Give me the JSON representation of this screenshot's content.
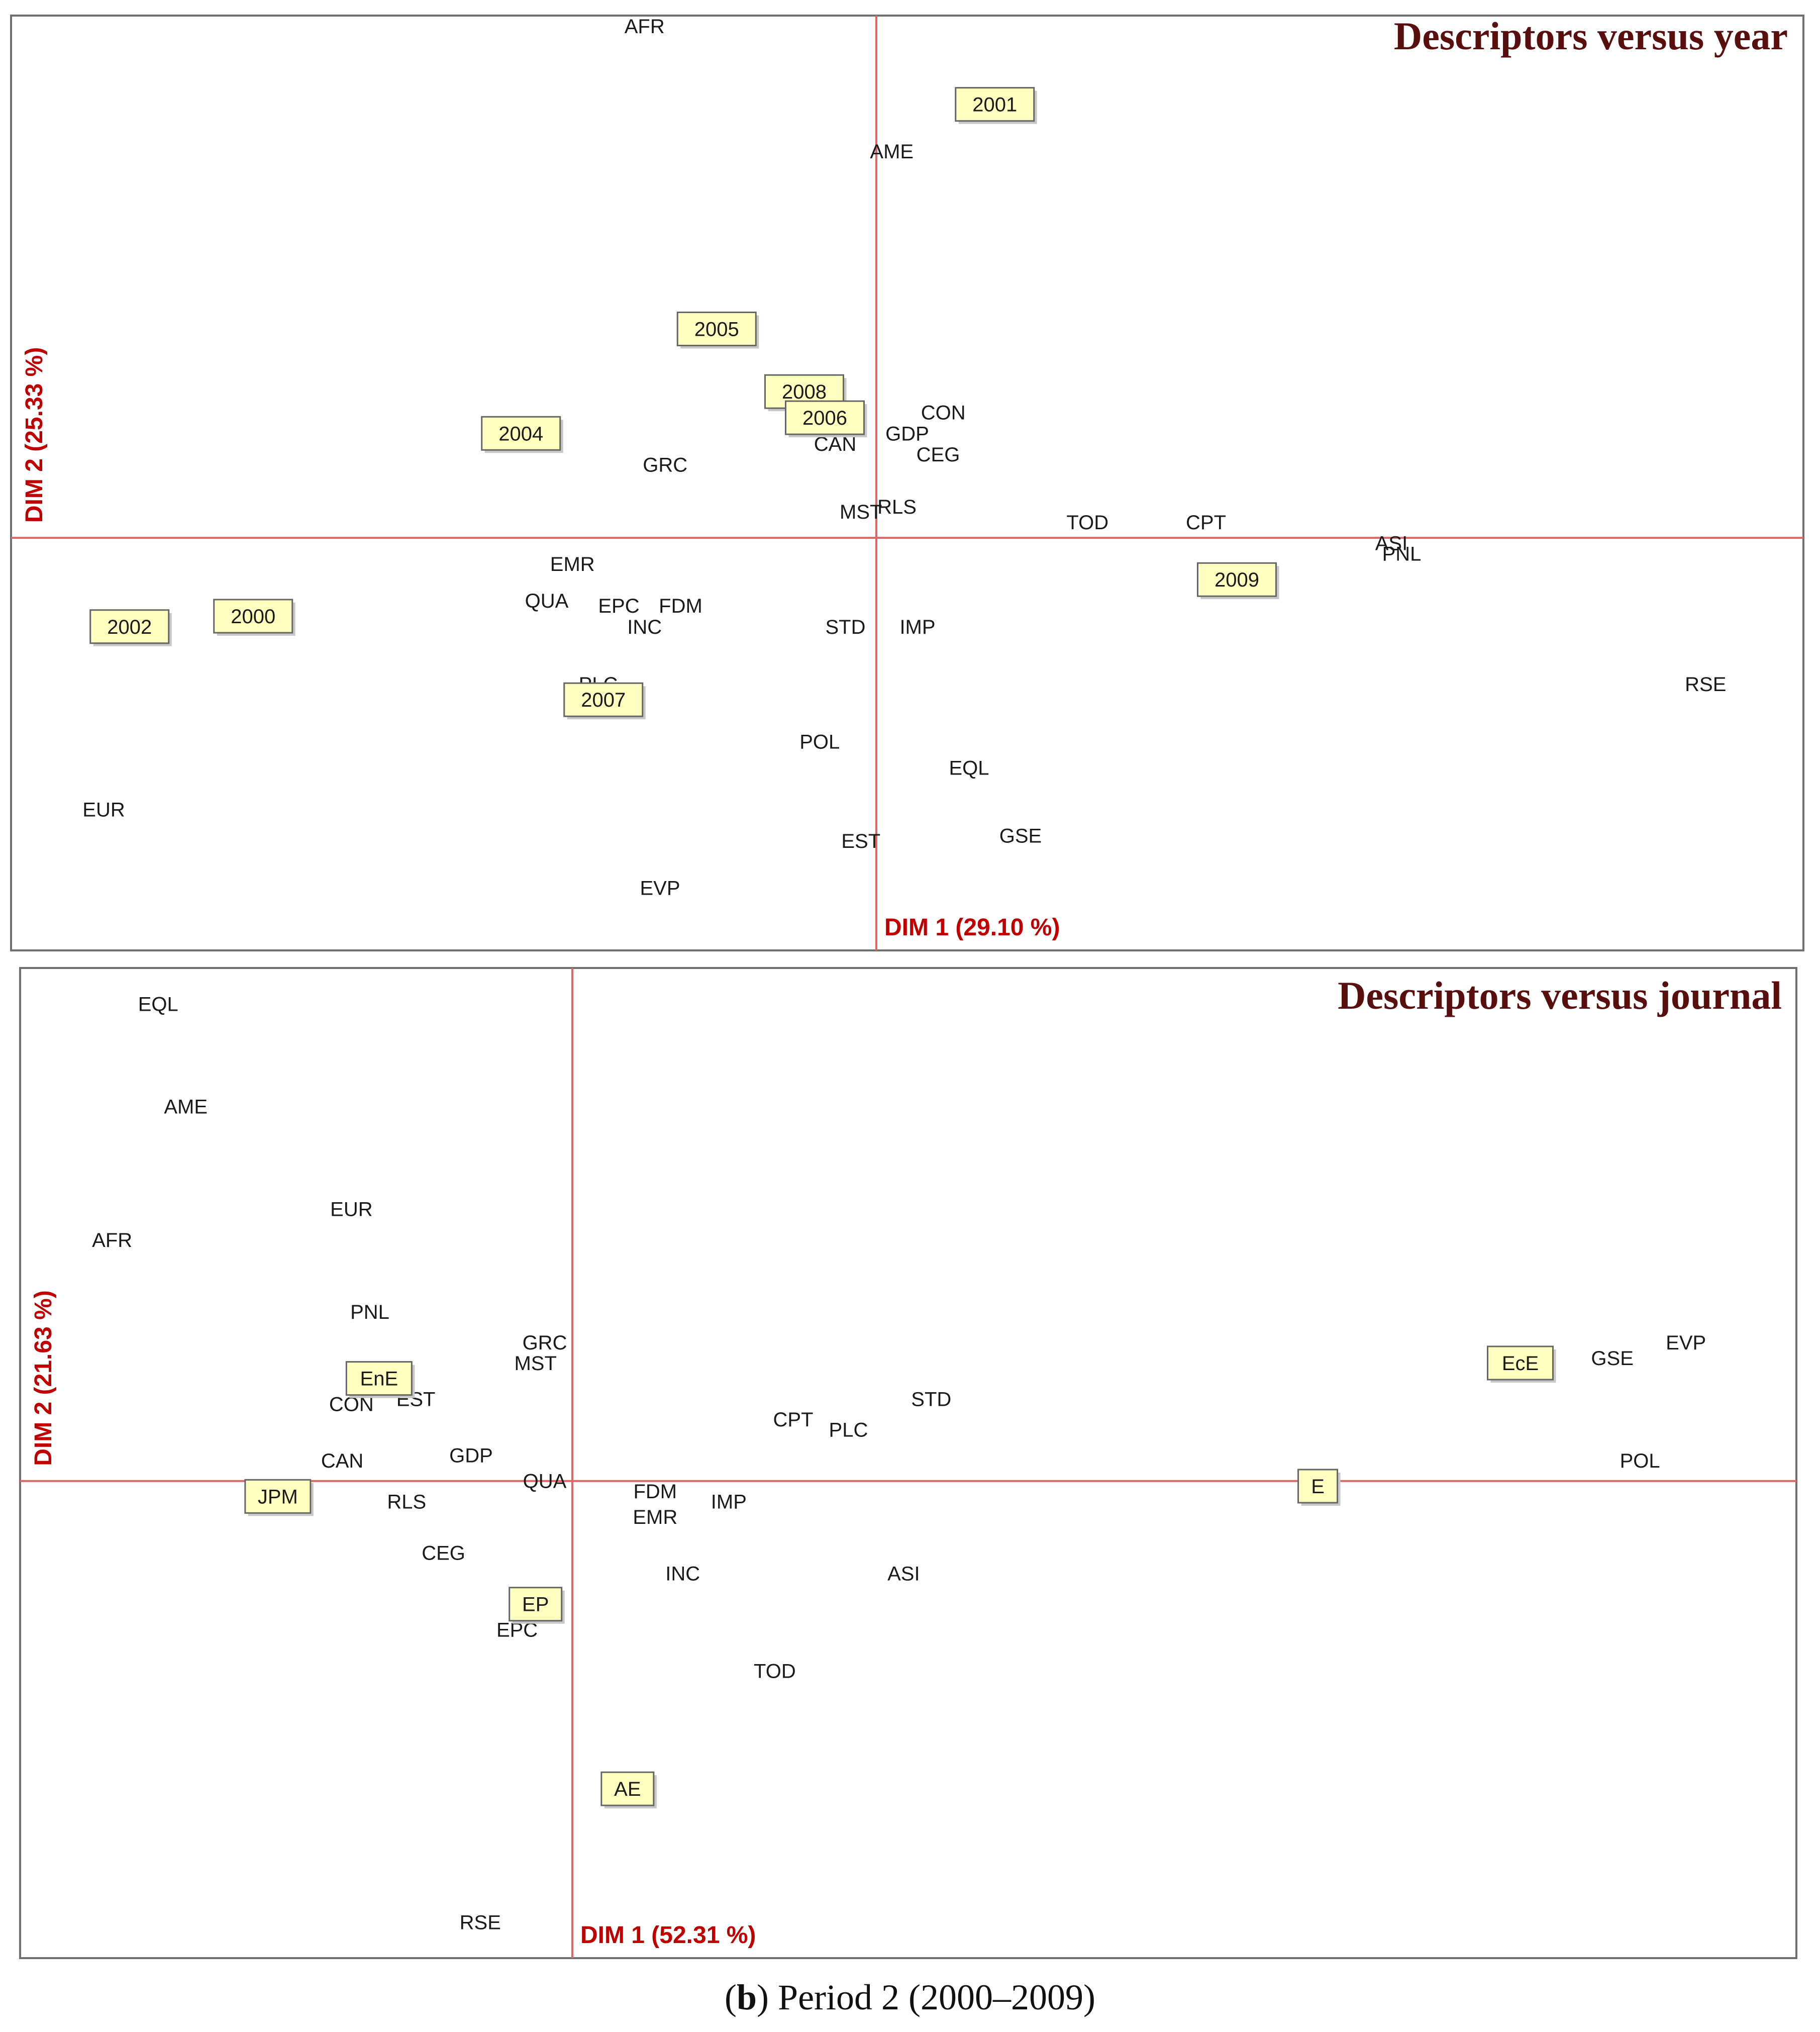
{
  "colors": {
    "axis": "#e06666",
    "dim_label": "#c00000",
    "title": "#5a0f0f",
    "box_fill": "#ffffc0"
  },
  "chart_data": [
    {
      "type": "scatter",
      "title": "Descriptors versus year",
      "xlabel": "DIM 1 (29.10 %)",
      "ylabel": "DIM 2 (25.33 %)",
      "xlim": [
        -1.68,
        1.8
      ],
      "ylim": [
        -0.79,
        1.0
      ],
      "grid": false,
      "descriptors": [
        {
          "label": "AFR",
          "x": -0.45,
          "y": 0.98
        },
        {
          "label": "AME",
          "x": 0.03,
          "y": 0.74
        },
        {
          "label": "CON",
          "x": 0.13,
          "y": 0.24
        },
        {
          "label": "GDP",
          "x": 0.06,
          "y": 0.2
        },
        {
          "label": "CEG",
          "x": 0.12,
          "y": 0.16
        },
        {
          "label": "CAN",
          "x": -0.08,
          "y": 0.18
        },
        {
          "label": "GRC",
          "x": -0.41,
          "y": 0.14
        },
        {
          "label": "MST",
          "x": -0.03,
          "y": 0.05
        },
        {
          "label": "RLS",
          "x": 0.04,
          "y": 0.06
        },
        {
          "label": "TOD",
          "x": 0.41,
          "y": 0.03
        },
        {
          "label": "CPT",
          "x": 0.64,
          "y": 0.03
        },
        {
          "label": "ASI",
          "x": 1.0,
          "y": -0.01
        },
        {
          "label": "PNL",
          "x": 1.02,
          "y": -0.03
        },
        {
          "label": "EMR",
          "x": -0.59,
          "y": -0.05
        },
        {
          "label": "QUA",
          "x": -0.64,
          "y": -0.12
        },
        {
          "label": "EPC",
          "x": -0.5,
          "y": -0.13
        },
        {
          "label": "FDM",
          "x": -0.38,
          "y": -0.13
        },
        {
          "label": "INC",
          "x": -0.45,
          "y": -0.17
        },
        {
          "label": "STD",
          "x": -0.06,
          "y": -0.17
        },
        {
          "label": "IMP",
          "x": 0.08,
          "y": -0.17
        },
        {
          "label": "PLC",
          "x": -0.54,
          "y": -0.28
        },
        {
          "label": "POL",
          "x": -0.11,
          "y": -0.39
        },
        {
          "label": "EQL",
          "x": 0.18,
          "y": -0.44
        },
        {
          "label": "RSE",
          "x": 1.61,
          "y": -0.28
        },
        {
          "label": "EUR",
          "x": -1.5,
          "y": -0.52
        },
        {
          "label": "EST",
          "x": -0.03,
          "y": -0.58
        },
        {
          "label": "GSE",
          "x": 0.28,
          "y": -0.57
        },
        {
          "label": "EVP",
          "x": -0.42,
          "y": -0.67
        }
      ],
      "categories": [
        {
          "label": "2001",
          "x": 0.23,
          "y": 0.83
        },
        {
          "label": "2005",
          "x": -0.31,
          "y": 0.4
        },
        {
          "label": "2008",
          "x": -0.14,
          "y": 0.28
        },
        {
          "label": "2006",
          "x": -0.1,
          "y": 0.23
        },
        {
          "label": "2004",
          "x": -0.69,
          "y": 0.2
        },
        {
          "label": "2009",
          "x": 0.7,
          "y": -0.08
        },
        {
          "label": "2002",
          "x": -1.45,
          "y": -0.17
        },
        {
          "label": "2000",
          "x": -1.21,
          "y": -0.15
        },
        {
          "label": "2007",
          "x": -0.53,
          "y": -0.31
        }
      ]
    },
    {
      "type": "scatter",
      "title": "Descriptors versus journal",
      "xlabel": "DIM 1 (52.31 %)",
      "ylabel": "DIM 2 (21.63 %)",
      "xlim": [
        -0.6,
        1.33
      ],
      "ylim": [
        -0.93,
        1.0
      ],
      "grid": false,
      "descriptors": [
        {
          "label": "EQL",
          "x": -0.45,
          "y": 0.93
        },
        {
          "label": "AME",
          "x": -0.42,
          "y": 0.73
        },
        {
          "label": "EUR",
          "x": -0.24,
          "y": 0.53
        },
        {
          "label": "AFR",
          "x": -0.5,
          "y": 0.47
        },
        {
          "label": "PNL",
          "x": -0.22,
          "y": 0.33
        },
        {
          "label": "GRC",
          "x": -0.03,
          "y": 0.27
        },
        {
          "label": "MST",
          "x": -0.04,
          "y": 0.23
        },
        {
          "label": "CON",
          "x": -0.24,
          "y": 0.15
        },
        {
          "label": "EST",
          "x": -0.17,
          "y": 0.16
        },
        {
          "label": "CAN",
          "x": -0.25,
          "y": 0.04
        },
        {
          "label": "GDP",
          "x": -0.11,
          "y": 0.05
        },
        {
          "label": "QUA",
          "x": -0.03,
          "y": 0.0
        },
        {
          "label": "RLS",
          "x": -0.18,
          "y": -0.04
        },
        {
          "label": "CEG",
          "x": -0.14,
          "y": -0.14
        },
        {
          "label": "EPC",
          "x": -0.06,
          "y": -0.29
        },
        {
          "label": "FDM",
          "x": 0.09,
          "y": -0.02
        },
        {
          "label": "EMR",
          "x": 0.09,
          "y": -0.07
        },
        {
          "label": "IMP",
          "x": 0.17,
          "y": -0.04
        },
        {
          "label": "INC",
          "x": 0.12,
          "y": -0.18
        },
        {
          "label": "ASI",
          "x": 0.36,
          "y": -0.18
        },
        {
          "label": "TOD",
          "x": 0.22,
          "y": -0.37
        },
        {
          "label": "CPT",
          "x": 0.24,
          "y": 0.12
        },
        {
          "label": "PLC",
          "x": 0.3,
          "y": 0.1
        },
        {
          "label": "STD",
          "x": 0.39,
          "y": 0.16
        },
        {
          "label": "GSE",
          "x": 1.13,
          "y": 0.24
        },
        {
          "label": "EVP",
          "x": 1.21,
          "y": 0.27
        },
        {
          "label": "POL",
          "x": 1.16,
          "y": 0.04
        },
        {
          "label": "RSE",
          "x": -0.1,
          "y": -0.86
        }
      ],
      "categories": [
        {
          "label": "EnE",
          "x": -0.21,
          "y": 0.2
        },
        {
          "label": "JPM",
          "x": -0.32,
          "y": -0.03
        },
        {
          "label": "EP",
          "x": -0.04,
          "y": -0.24
        },
        {
          "label": "AE",
          "x": 0.06,
          "y": -0.6
        },
        {
          "label": "E",
          "x": 0.81,
          "y": -0.01
        },
        {
          "label": "EcE",
          "x": 1.03,
          "y": 0.23
        }
      ]
    }
  ],
  "caption": {
    "letter": "b",
    "close_paren": ")",
    "text": " Period 2 (2000–2009)"
  }
}
